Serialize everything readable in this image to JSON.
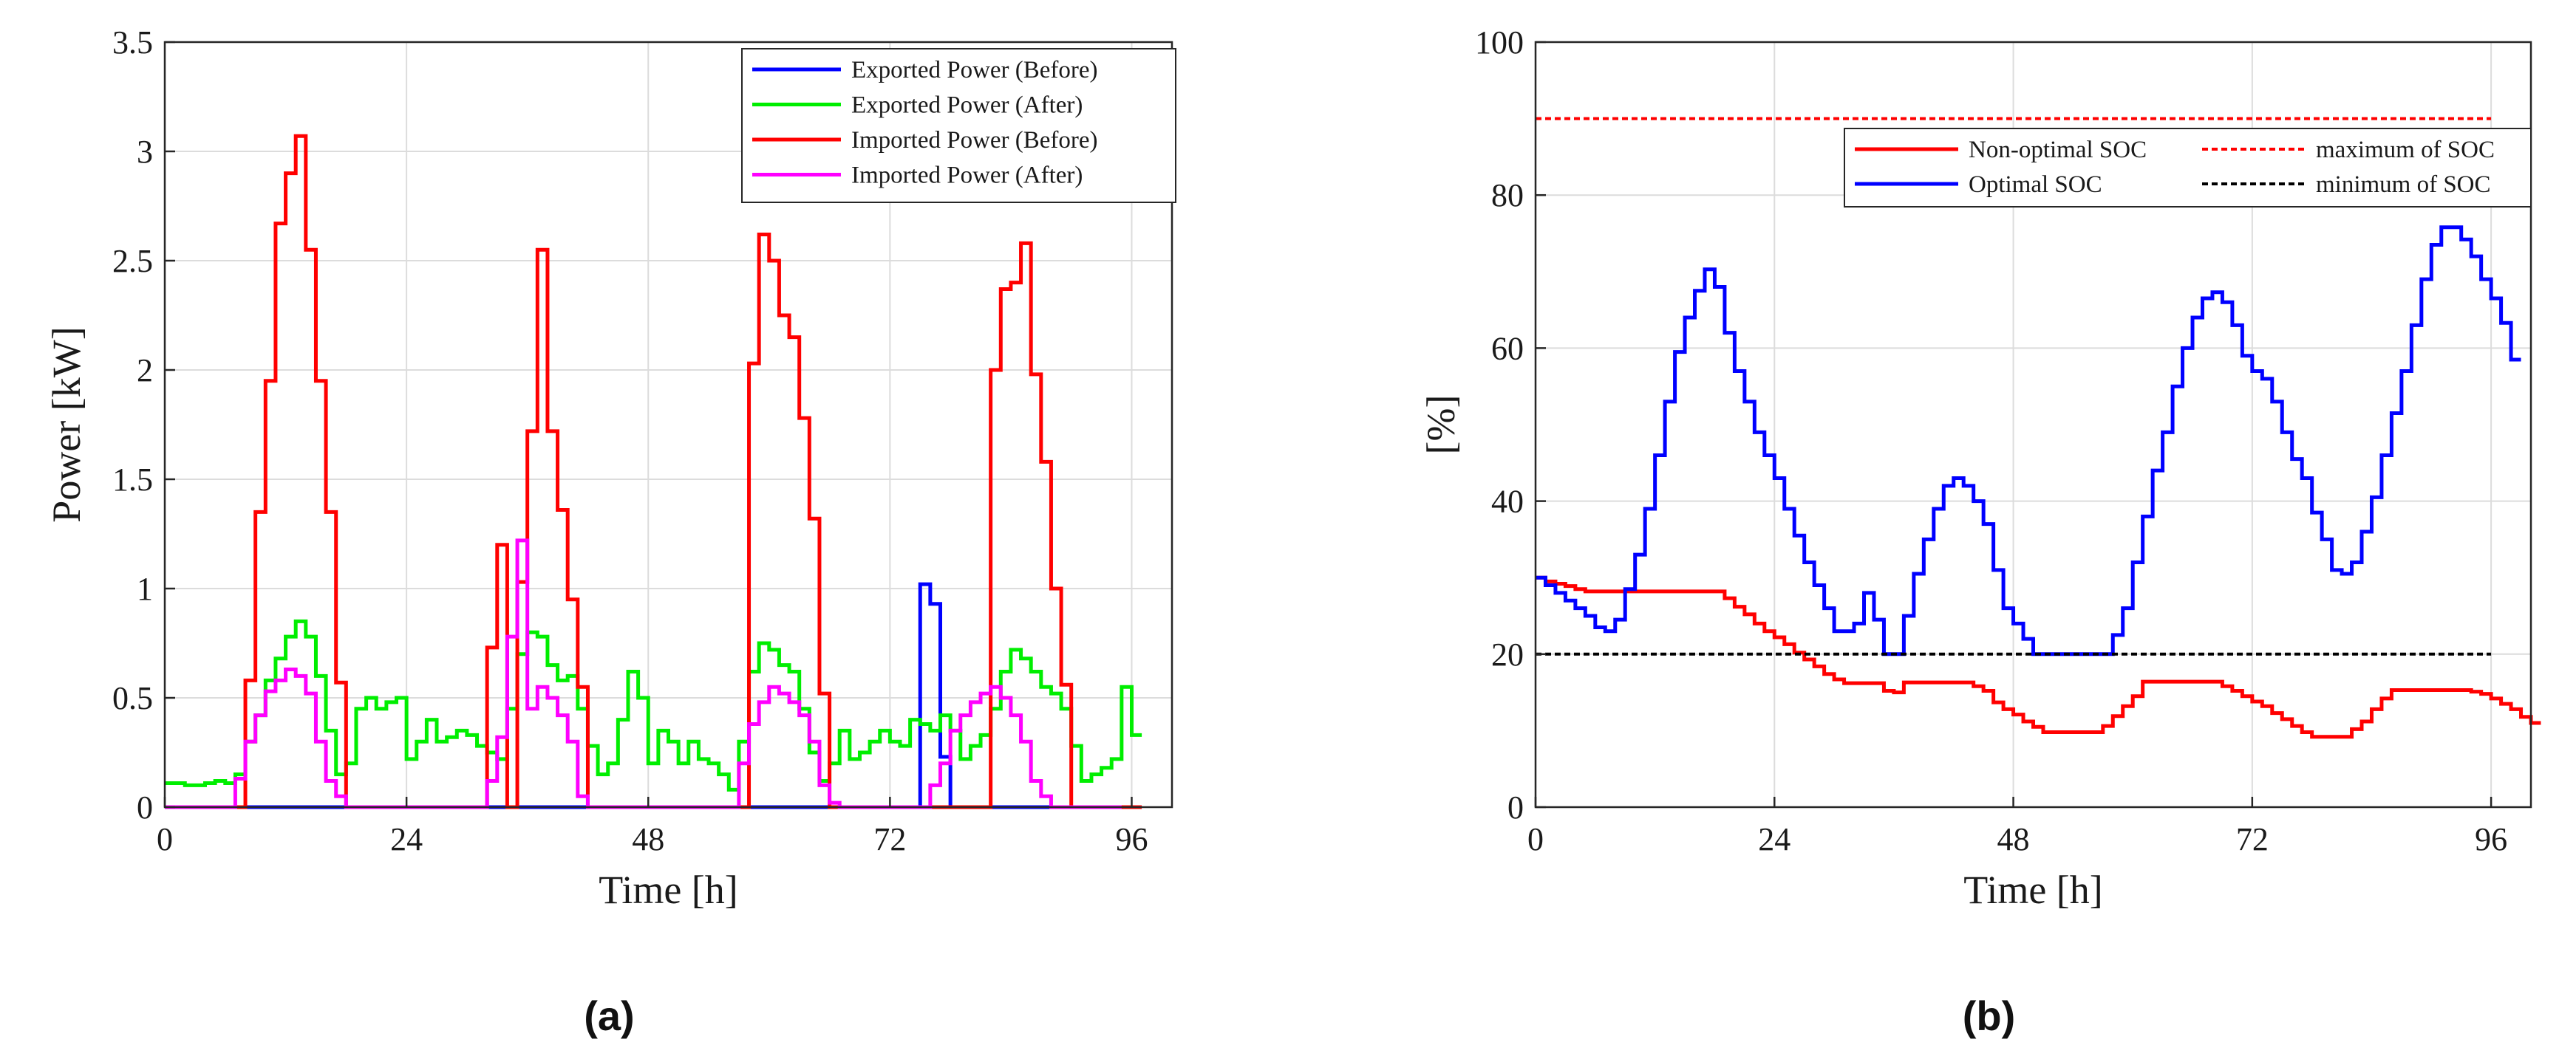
{
  "chart_data": [
    {
      "type": "line",
      "panel_label": "(a)",
      "xlabel": "Time [h]",
      "ylabel": "Power [kW]",
      "xlim": [
        0,
        100
      ],
      "ylim": [
        0,
        3.5
      ],
      "xticks": [
        "0",
        "24",
        "48",
        "72",
        "96"
      ],
      "yticks": [
        "0",
        "0.5",
        "1",
        "1.5",
        "2",
        "2.5",
        "3",
        "3.5"
      ],
      "grid": true,
      "legend_position": "top-right",
      "step": 1,
      "series": [
        {
          "name": "Exported Power (Before)",
          "color": "#0000ff",
          "values": [
            0,
            0,
            0,
            0,
            0,
            0,
            0,
            0,
            0,
            0,
            0,
            0,
            0,
            0,
            0,
            0,
            0,
            0,
            0,
            0,
            0,
            0,
            0,
            0,
            0,
            0,
            0,
            0,
            0,
            0,
            0,
            0,
            0,
            0,
            0,
            0,
            0,
            0,
            0,
            0,
            0,
            0,
            0,
            0,
            0,
            0,
            0,
            0,
            0,
            0,
            0,
            0,
            0,
            0,
            0,
            0,
            0,
            0,
            0,
            0,
            0,
            0,
            0,
            0,
            0,
            0,
            0,
            0,
            0,
            0,
            0,
            0,
            0,
            0,
            0,
            1.02,
            0.93,
            0.23,
            0,
            0,
            0,
            0,
            0,
            0,
            0,
            0,
            0,
            0,
            0,
            0,
            0,
            0,
            0,
            0,
            0,
            0
          ]
        },
        {
          "name": "Exported Power (After)",
          "color": "#00ee00",
          "values": [
            0.11,
            0.11,
            0.1,
            0.1,
            0.11,
            0.12,
            0.11,
            0.15,
            0.3,
            0.42,
            0.58,
            0.68,
            0.78,
            0.85,
            0.78,
            0.6,
            0.35,
            0.15,
            0.2,
            0.45,
            0.5,
            0.45,
            0.48,
            0.5,
            0.22,
            0.3,
            0.4,
            0.3,
            0.32,
            0.35,
            0.33,
            0.28,
            0.25,
            0.22,
            0.45,
            0.7,
            0.8,
            0.78,
            0.65,
            0.58,
            0.6,
            0.45,
            0.28,
            0.15,
            0.2,
            0.4,
            0.62,
            0.5,
            0.2,
            0.35,
            0.3,
            0.2,
            0.3,
            0.22,
            0.2,
            0.15,
            0.08,
            0.3,
            0.62,
            0.75,
            0.72,
            0.65,
            0.62,
            0.45,
            0.25,
            0.12,
            0.2,
            0.35,
            0.22,
            0.25,
            0.3,
            0.35,
            0.3,
            0.28,
            0.4,
            0.38,
            0.35,
            0.42,
            0.35,
            0.22,
            0.28,
            0.33,
            0.45,
            0.62,
            0.72,
            0.68,
            0.62,
            0.55,
            0.52,
            0.45,
            0.28,
            0.12,
            0.15,
            0.18,
            0.22,
            0.55,
            0.33
          ]
        },
        {
          "name": "Imported Power (Before)",
          "color": "#ff0000",
          "values": [
            0,
            0,
            0,
            0,
            0,
            0,
            0,
            0,
            0.58,
            1.35,
            1.95,
            2.67,
            2.9,
            3.07,
            2.55,
            1.95,
            1.35,
            0.57,
            0,
            0,
            0,
            0,
            0,
            0,
            0,
            0,
            0,
            0,
            0,
            0,
            0,
            0,
            0.73,
            1.2,
            0,
            1.03,
            1.72,
            2.55,
            1.72,
            1.36,
            0.95,
            0.55,
            0,
            0,
            0,
            0,
            0,
            0,
            0,
            0,
            0,
            0,
            0,
            0,
            0,
            0,
            0,
            0,
            2.03,
            2.62,
            2.5,
            2.25,
            2.15,
            1.78,
            1.32,
            0.52,
            0,
            0,
            0,
            0,
            0,
            0,
            0,
            0,
            0,
            0,
            0,
            0,
            0,
            0,
            0,
            0,
            2.0,
            2.37,
            2.4,
            2.58,
            1.98,
            1.58,
            1.0,
            0.56,
            0,
            0,
            0,
            0,
            0,
            0,
            0
          ]
        },
        {
          "name": "Imported Power (After)",
          "color": "#ff00ff",
          "values": [
            0,
            0,
            0,
            0,
            0,
            0,
            0,
            0.13,
            0.3,
            0.42,
            0.53,
            0.58,
            0.63,
            0.6,
            0.52,
            0.3,
            0.12,
            0.05,
            0,
            0,
            0,
            0,
            0,
            0,
            0,
            0,
            0,
            0,
            0,
            0,
            0,
            0,
            0.12,
            0.32,
            0.78,
            1.22,
            0.45,
            0.55,
            0.5,
            0.42,
            0.3,
            0.05,
            0,
            0,
            0,
            0,
            0,
            0,
            0,
            0,
            0,
            0,
            0,
            0,
            0,
            0,
            0,
            0.2,
            0.38,
            0.48,
            0.55,
            0.52,
            0.48,
            0.42,
            0.3,
            0.1,
            0.02,
            0,
            0,
            0,
            0,
            0,
            0,
            0,
            0,
            0,
            0.1,
            0.2,
            0.35,
            0.42,
            0.48,
            0.52,
            0.55,
            0.5,
            0.42,
            0.3,
            0.12,
            0.05,
            0,
            0,
            0,
            0,
            0,
            0,
            0
          ]
        }
      ]
    },
    {
      "type": "line",
      "panel_label": "(b)",
      "xlabel": "Time [h]",
      "ylabel": "[%]",
      "xlim": [
        0,
        100
      ],
      "ylim": [
        0,
        100
      ],
      "xticks": [
        "0",
        "24",
        "48",
        "72",
        "96"
      ],
      "yticks": [
        "0",
        "20",
        "40",
        "60",
        "80",
        "100"
      ],
      "grid": true,
      "legend_position": "top-right",
      "step": 1,
      "series": [
        {
          "name": "Non-optimal SOC",
          "color": "#ff0000",
          "values": [
            30,
            29.5,
            29.2,
            28.9,
            28.5,
            28.2,
            28.2,
            28.2,
            28.2,
            28.2,
            28.2,
            28.2,
            28.2,
            28.2,
            28.2,
            28.2,
            28.2,
            28.2,
            28.2,
            27.3,
            26.2,
            25.2,
            24,
            23,
            22.2,
            21.3,
            20.2,
            19.3,
            18.4,
            17.4,
            16.7,
            16.2,
            16.2,
            16.2,
            16.2,
            15.2,
            15,
            16.3,
            16.3,
            16.3,
            16.3,
            16.3,
            16.3,
            16.3,
            15.8,
            15.2,
            13.7,
            12.8,
            12.1,
            11.2,
            10.5,
            9.8,
            9.8,
            9.8,
            9.8,
            9.8,
            9.8,
            10.6,
            11.9,
            13.2,
            14.5,
            16.4,
            16.4,
            16.4,
            16.4,
            16.4,
            16.4,
            16.4,
            16.4,
            15.8,
            15.2,
            14.5,
            13.8,
            13.2,
            12.3,
            11.5,
            10.6,
            9.8,
            9.2,
            9.2,
            9.2,
            9.2,
            10.2,
            11.2,
            12.8,
            14.2,
            15.3,
            15.3,
            15.3,
            15.3,
            15.3,
            15.3,
            15.3,
            15.3,
            15.1,
            14.8,
            14.2,
            13.5,
            12.8,
            11.8,
            11
          ]
        },
        {
          "name": "Optimal SOC",
          "color": "#0000ff",
          "values": [
            30,
            29,
            28,
            27,
            26,
            25,
            23.5,
            23,
            24.5,
            28.5,
            33,
            39,
            46,
            53,
            59.5,
            64,
            67.5,
            70.3,
            68,
            62,
            57,
            53,
            49,
            46,
            43,
            39,
            35.5,
            32,
            29,
            26,
            23,
            23,
            24,
            28,
            24.5,
            20,
            20,
            25,
            30.5,
            35,
            39,
            42,
            43,
            42,
            40,
            37,
            31,
            26,
            24,
            22,
            20,
            20,
            20,
            20,
            20,
            20,
            20,
            20,
            22.5,
            26,
            32,
            38,
            44,
            49,
            55,
            60,
            64,
            66.5,
            67.3,
            66,
            63,
            59,
            57,
            56,
            53,
            49,
            45.5,
            43,
            38.5,
            35,
            31,
            30.5,
            32,
            36,
            40.5,
            46,
            51.5,
            57,
            63,
            69,
            73.5,
            75.8,
            75.8,
            74.2,
            72,
            69,
            66.5,
            63.3,
            58.5
          ]
        },
        {
          "name": "maximum of SOC",
          "color": "#ff0000",
          "dashed": true,
          "constant": 90
        },
        {
          "name": "minimum of SOC",
          "color": "#000000",
          "dashed": true,
          "constant": 20
        }
      ]
    }
  ]
}
